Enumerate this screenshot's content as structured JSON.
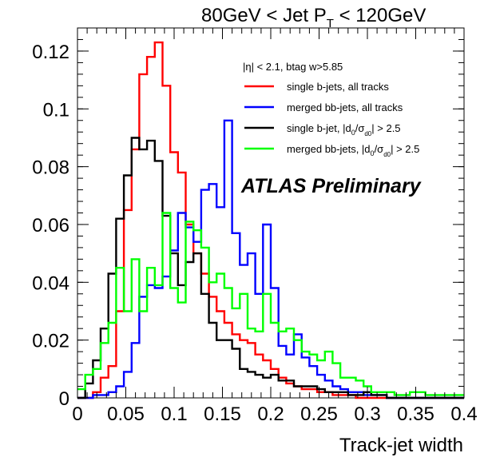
{
  "chart_data": {
    "type": "line",
    "style": "step-histogram",
    "title_pre": "80GeV < Jet P",
    "title_sub": "T",
    "title_post": " < 120GeV",
    "xlabel": "Track-jet width",
    "ylabel": "",
    "xlim": [
      0,
      0.4
    ],
    "ylim": [
      0,
      0.128
    ],
    "x_ticks": [
      "0",
      "0.05",
      "0.1",
      "0.15",
      "0.2",
      "0.25",
      "0.3",
      "0.35",
      "0.4"
    ],
    "y_ticks": [
      "0",
      "0.02",
      "0.04",
      "0.06",
      "0.08",
      "0.1",
      "0.12"
    ],
    "bin_width": 0.008,
    "bin_start": 0,
    "cut_label": "|η| < 2.1, btag w>5.85",
    "annotation": "ATLAS Preliminary",
    "legend_position": "top-right",
    "series": [
      {
        "legend_pre": "single b-jets, all tracks",
        "color": "#ff0000",
        "values": [
          0.0,
          0.0,
          0.002,
          0.007,
          0.011,
          0.03,
          0.065,
          0.086,
          0.112,
          0.118,
          0.123,
          0.108,
          0.085,
          0.078,
          0.06,
          0.05,
          0.043,
          0.035,
          0.03,
          0.026,
          0.022,
          0.02,
          0.019,
          0.015,
          0.013,
          0.01,
          0.007,
          0.005,
          0.004,
          0.003,
          0.003,
          0.002,
          0.002,
          0.001,
          0.001,
          0.001,
          0.0,
          0.0,
          0.0,
          0.0,
          0.0,
          0.0,
          0.0,
          0.0,
          0.0,
          0.0,
          0.0,
          0.0,
          0.0,
          0.0
        ]
      },
      {
        "legend_pre": "merged bb-jets, all tracks",
        "color": "#0000ff",
        "values": [
          0.0,
          0.0,
          0.001,
          0.001,
          0.002,
          0.004,
          0.009,
          0.019,
          0.035,
          0.039,
          0.038,
          0.042,
          0.051,
          0.064,
          0.059,
          0.054,
          0.072,
          0.074,
          0.066,
          0.096,
          0.057,
          0.046,
          0.05,
          0.036,
          0.06,
          0.038,
          0.018,
          0.015,
          0.022,
          0.014,
          0.011,
          0.008,
          0.006,
          0.004,
          0.003,
          0.002,
          0.002,
          0.001,
          0.001,
          0.001,
          0.0,
          0.0,
          0.0,
          0.0,
          0.0,
          0.0,
          0.0,
          0.0,
          0.0,
          0.0
        ]
      },
      {
        "legend_pre": "single b-jet, |d",
        "legend_sub1": "0",
        "legend_mid": "/σ",
        "legend_sub2": "d0",
        "legend_post": "| > 2.5",
        "color": "#000000",
        "values": [
          0.0,
          0.005,
          0.013,
          0.024,
          0.043,
          0.062,
          0.077,
          0.09,
          0.086,
          0.089,
          0.082,
          0.063,
          0.05,
          0.039,
          0.047,
          0.05,
          0.036,
          0.026,
          0.02,
          0.02,
          0.017,
          0.01,
          0.009,
          0.008,
          0.007,
          0.008,
          0.006,
          0.006,
          0.004,
          0.004,
          0.004,
          0.003,
          0.002,
          0.002,
          0.002,
          0.001,
          0.001,
          0.002,
          0.001,
          0.001,
          0.0,
          0.0,
          0.0,
          0.0,
          0.0,
          0.0,
          0.0,
          0.0,
          0.0,
          0.0
        ]
      },
      {
        "legend_pre": "merged bb-jets, |d",
        "legend_sub1": "0",
        "legend_mid": "/σ",
        "legend_sub2": "d0",
        "legend_post": "| > 2.5",
        "color": "#00ff00",
        "values": [
          0.003,
          0.008,
          0.01,
          0.019,
          0.026,
          0.045,
          0.03,
          0.048,
          0.03,
          0.045,
          0.039,
          0.064,
          0.038,
          0.033,
          0.061,
          0.058,
          0.052,
          0.04,
          0.043,
          0.038,
          0.031,
          0.036,
          0.024,
          0.023,
          0.036,
          0.026,
          0.023,
          0.024,
          0.02,
          0.016,
          0.015,
          0.013,
          0.016,
          0.012,
          0.007,
          0.007,
          0.006,
          0.004,
          0.002,
          0.002,
          0.002,
          0.001,
          0.001,
          0.002,
          0.002,
          0.001,
          0.001,
          0.001,
          0.001,
          0.001
        ]
      }
    ]
  }
}
